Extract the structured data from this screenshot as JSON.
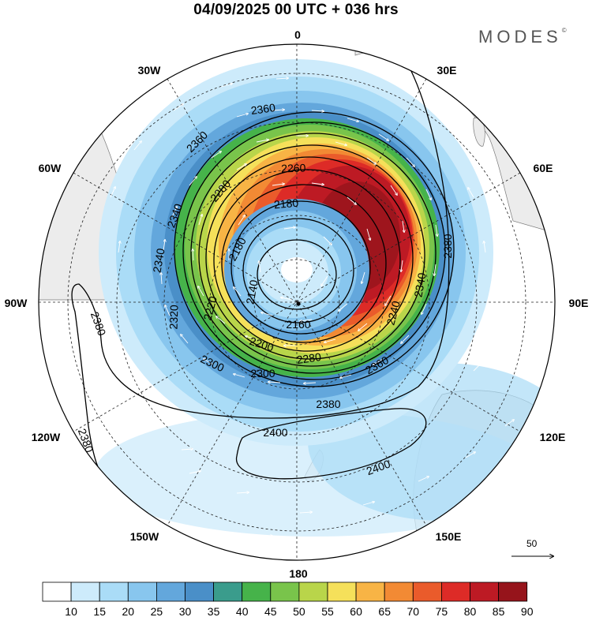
{
  "header": {
    "title": "04/09/2025  00 UTC  + 036 hrs",
    "brand": "MODES",
    "brand_mark": "©"
  },
  "map": {
    "longitude_labels": {
      "lon_0": "0",
      "lon_30E": "30E",
      "lon_60E": "60E",
      "lon_90E": "90E",
      "lon_120E": "120E",
      "lon_150E": "150E",
      "lon_180": "180",
      "lon_150W": "150W",
      "lon_120W": "120W",
      "lon_90W": "90W",
      "lon_60W": "60W",
      "lon_30W": "30W"
    },
    "contour_labels": {
      "c2360a": "2360",
      "c2360b": "2360",
      "c2260": "2260",
      "c2280": "2280",
      "c2340a": "2340",
      "c2180a": "2180",
      "c2180b": "2180",
      "c2340b": "2340",
      "c2380a": "2380",
      "c2140": "2140",
      "c2320": "2320",
      "c2220": "2220",
      "c2240": "2240",
      "c2160": "2160",
      "c2340c": "2340",
      "c2200": "2200",
      "c2300a": "2300",
      "c2300b": "2300",
      "c2280b": "2280",
      "c2360c": "2360",
      "c2380b": "2380",
      "c2380c": "2380",
      "c2380d": "2380",
      "c2400a": "2400",
      "c2400b": "2400"
    },
    "reference_vector_label": "50",
    "colors": {
      "land": "#ececec",
      "land_edge": "#7a7a7a",
      "contour": "#000000",
      "vector": "#ffffff"
    }
  },
  "colorbar": {
    "labels": [
      "10",
      "15",
      "20",
      "25",
      "30",
      "35",
      "40",
      "45",
      "50",
      "55",
      "60",
      "65",
      "70",
      "75",
      "80",
      "85",
      "90"
    ],
    "colors": [
      "#ffffff",
      "#cdebfb",
      "#aadcf7",
      "#88c6ee",
      "#63a7dc",
      "#4a8fc8",
      "#3a9c8c",
      "#46b34a",
      "#79c44b",
      "#b9d54a",
      "#f5e05a",
      "#f8b445",
      "#f28a34",
      "#ea5b2b",
      "#dd2b27",
      "#bd1a24",
      "#96141b"
    ]
  }
}
